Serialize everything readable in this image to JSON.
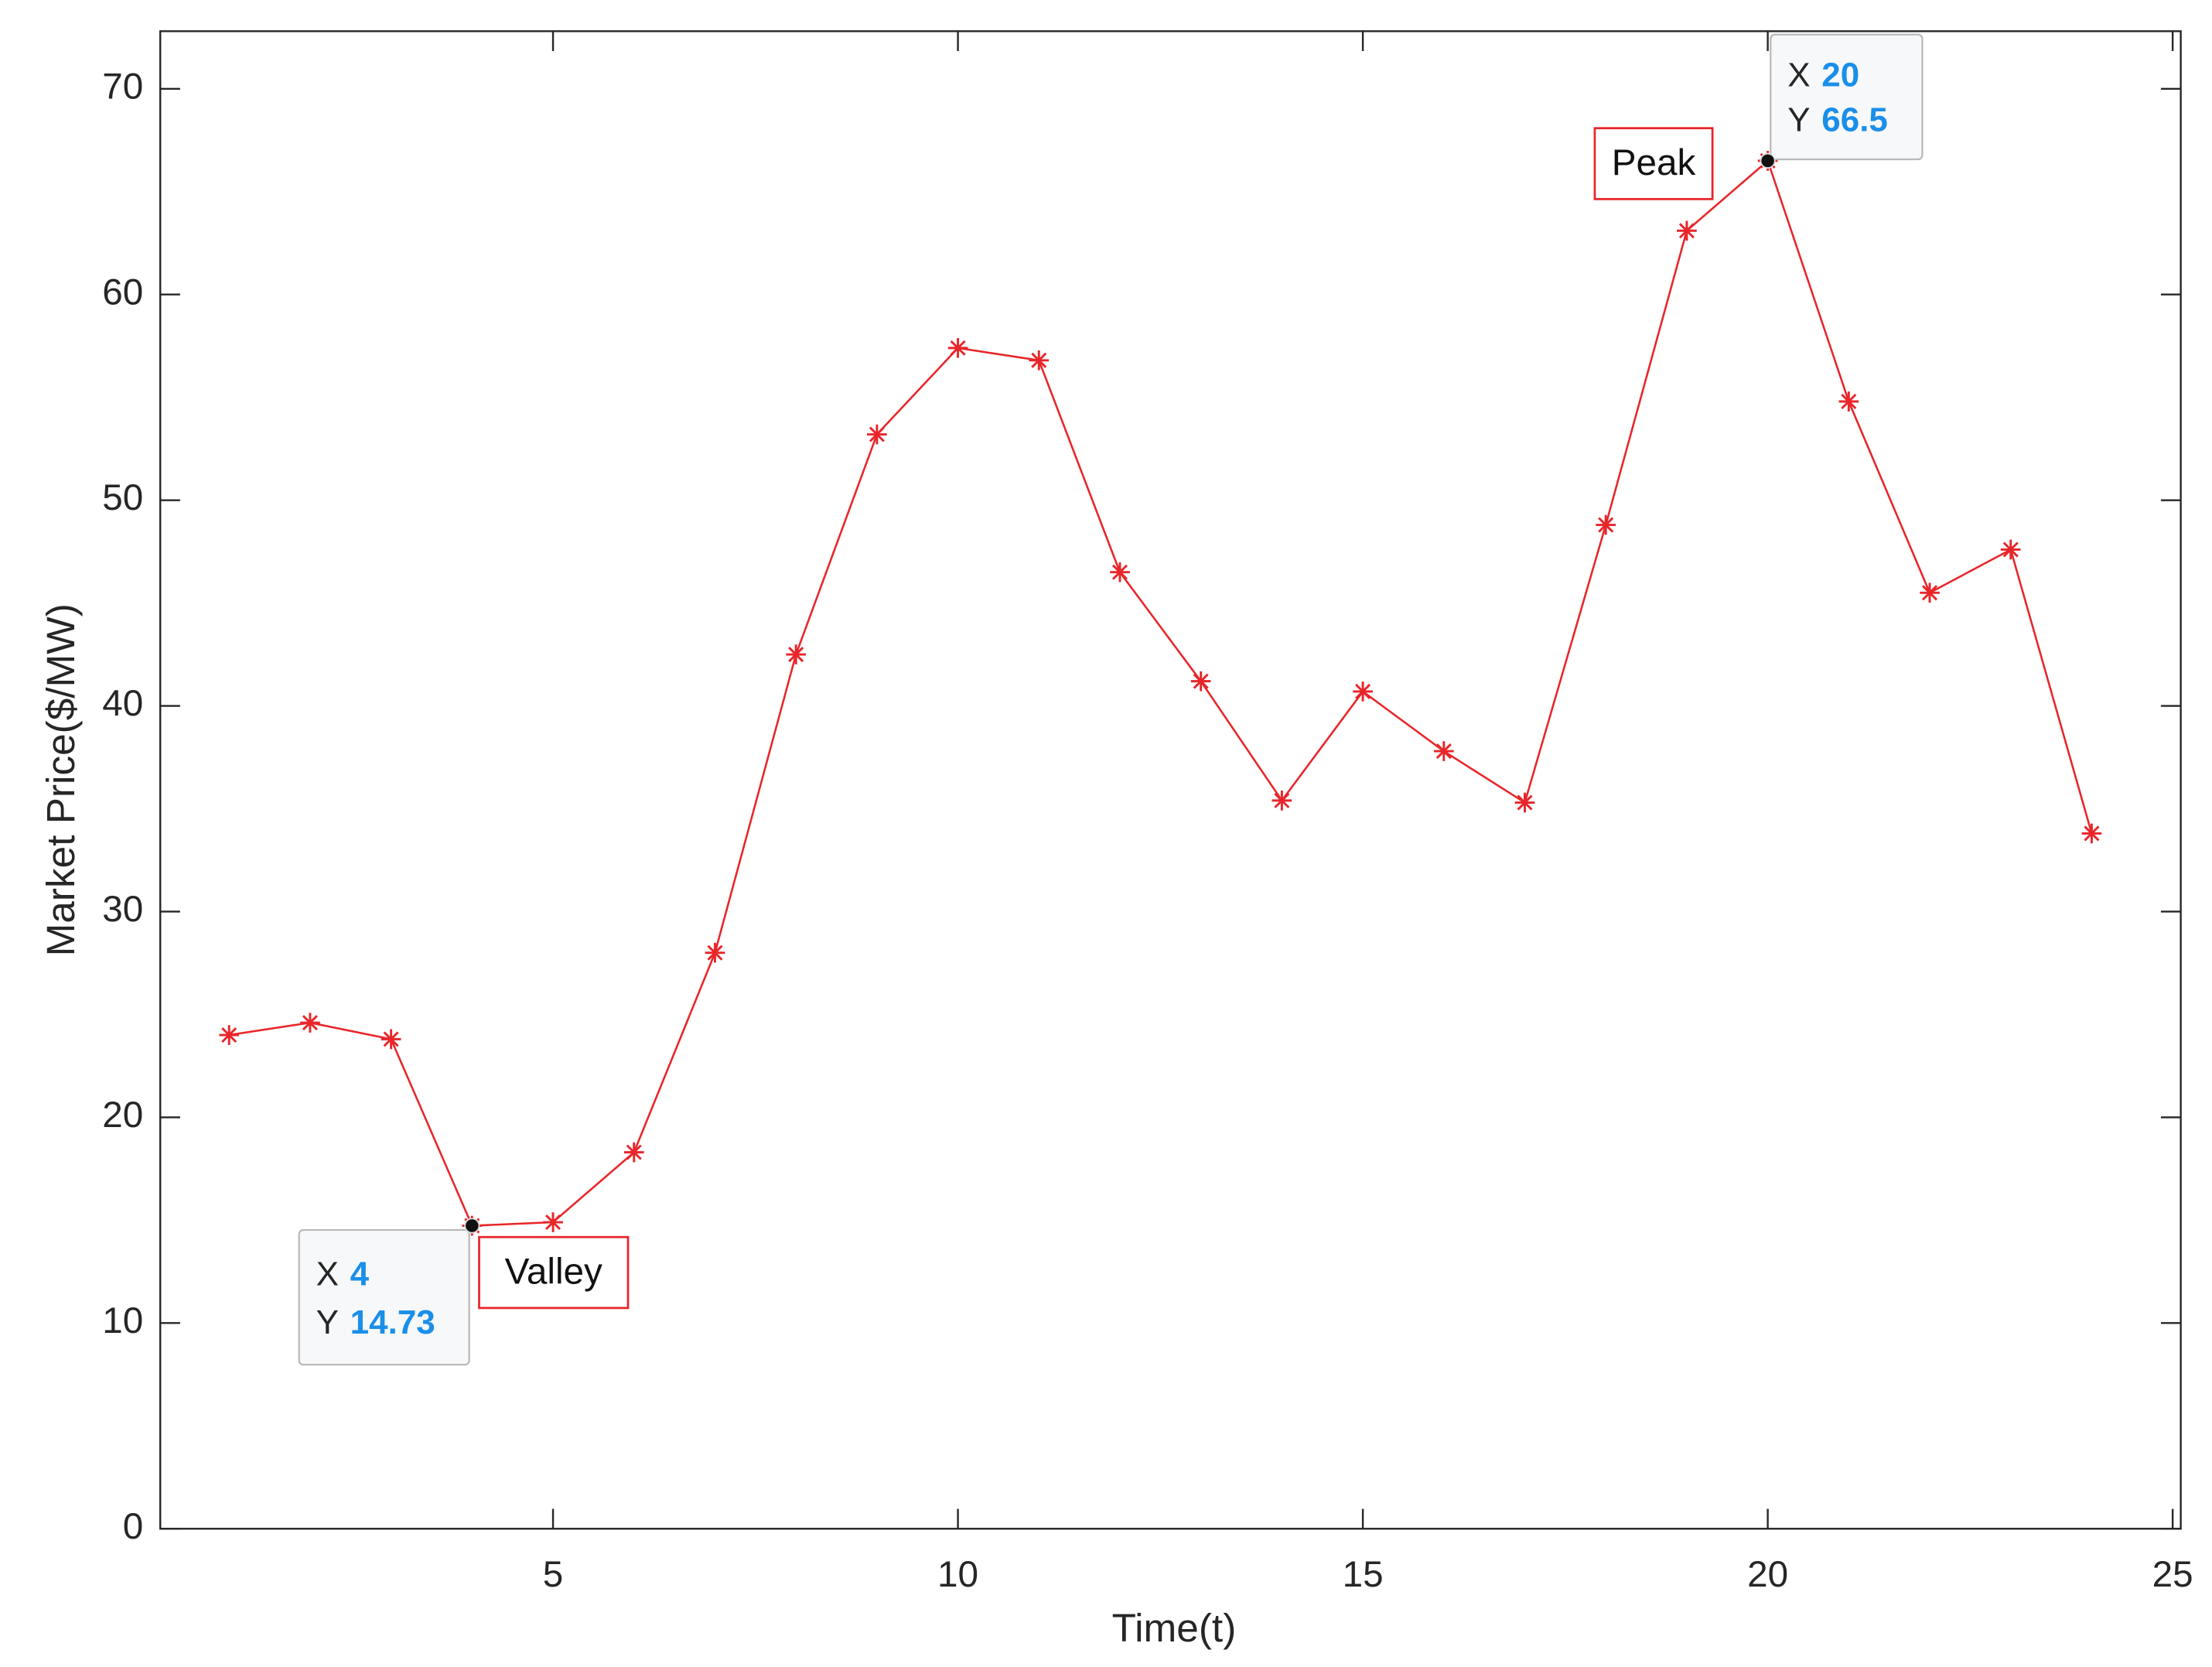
{
  "chart_data": {
    "type": "line",
    "xlabel": "Time(t)",
    "ylabel": "Market Price($/MW)",
    "x": [
      1,
      2,
      3,
      4,
      5,
      6,
      7,
      8,
      9,
      10,
      11,
      12,
      13,
      14,
      15,
      16,
      17,
      18,
      19,
      20,
      21,
      22,
      23,
      24
    ],
    "series": [
      {
        "color": "#e8262a",
        "values": [
          24.0,
          24.6,
          23.8,
          14.73,
          14.9,
          18.3,
          28.0,
          42.5,
          53.2,
          57.4,
          56.8,
          46.5,
          41.2,
          35.4,
          40.7,
          37.8,
          35.3,
          48.8,
          63.1,
          66.5,
          54.8,
          45.5,
          47.6,
          33.8
        ]
      }
    ],
    "xlim": [
      0.15,
      25.1
    ],
    "ylim": [
      0,
      72.8
    ],
    "xticks": [
      5,
      10,
      15,
      20,
      25
    ],
    "yticks": [
      0,
      10,
      20,
      30,
      40,
      50,
      60,
      70
    ],
    "grid": false,
    "datatips": [
      {
        "x_label": "X",
        "x": 4,
        "y_label": "Y",
        "y": 14.73,
        "annotation": "Valley"
      },
      {
        "x_label": "X",
        "x": 20,
        "y_label": "Y",
        "y": 66.5,
        "annotation": "Peak"
      }
    ]
  }
}
